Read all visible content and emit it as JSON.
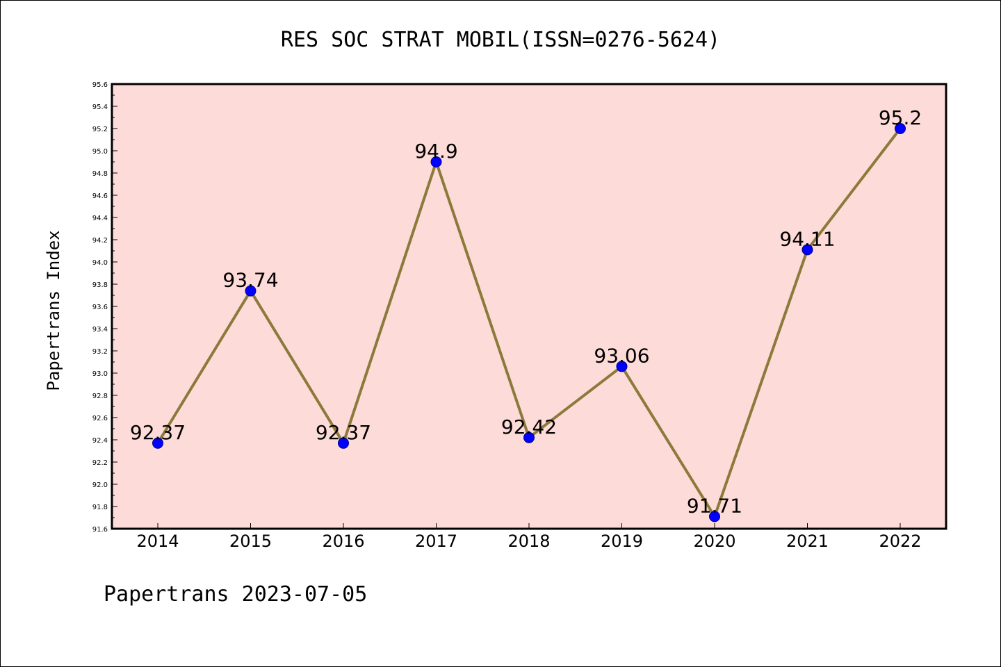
{
  "chart_data": {
    "type": "line",
    "title": "RES SOC STRAT MOBIL(ISSN=0276-5624)",
    "xlabel": "",
    "ylabel": "Papertrans Index",
    "categories": [
      "2014",
      "2015",
      "2016",
      "2017",
      "2018",
      "2019",
      "2020",
      "2021",
      "2022"
    ],
    "values": [
      92.37,
      93.74,
      92.37,
      94.9,
      92.42,
      93.06,
      91.71,
      94.11,
      95.2
    ],
    "data_labels": [
      "92.37",
      "93.74",
      "92.37",
      "94.9",
      "92.42",
      "93.06",
      "91.71",
      "94.11",
      "95.2"
    ],
    "ylim": [
      91.6,
      95.6
    ],
    "y_ticks": [
      "91.6",
      "91.8",
      "92.0",
      "92.2",
      "92.4",
      "92.6",
      "92.8",
      "93.0",
      "93.2",
      "93.4",
      "93.6",
      "93.8",
      "94.0",
      "94.2",
      "94.4",
      "94.6",
      "94.8",
      "95.0",
      "95.2",
      "95.4",
      "95.6"
    ],
    "grid": false,
    "legend": "none",
    "footer": "Papertrans 2023-07-05"
  },
  "colors": {
    "plot_background": "#fddbd8",
    "line": "#8b7a3a",
    "marker": "#0000ff",
    "axes": "#000000"
  }
}
